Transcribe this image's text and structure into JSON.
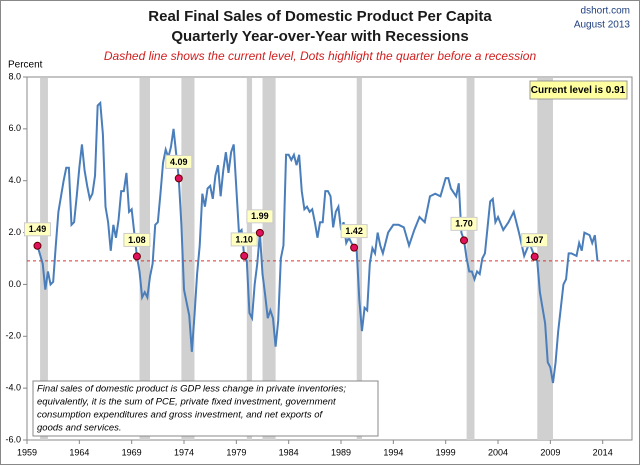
{
  "chart_data": {
    "type": "line",
    "title": "Real Final Sales of Domestic Product Per Capita",
    "title2": "Quarterly Year-over-Year with Recessions",
    "subtitle": "Dashed line shows the current level, Dots highlight the quarter before a recession",
    "source": "dshort.com",
    "date": "August 2013",
    "y_label": "Percent",
    "note": [
      "Final sales of domestic product is GDP less change in private inventories;",
      "equivalently, it is the sum of PCE, private fixed investment, government",
      "consumption expenditures and gross investment, and net exports of",
      "goods and services."
    ],
    "xlim": [
      1959,
      2016.8
    ],
    "xticks": [
      1959,
      1964,
      1969,
      1974,
      1979,
      1984,
      1989,
      1994,
      1999,
      2004,
      2009,
      2014
    ],
    "ylim": [
      -6,
      8
    ],
    "yticks": [
      {
        "value": -6,
        "label": "-6.0"
      },
      {
        "value": -4,
        "label": "-4.0"
      },
      {
        "value": -2,
        "label": "-2.0"
      },
      {
        "value": 0,
        "label": "0.0"
      },
      {
        "value": 2,
        "label": "2.0"
      },
      {
        "value": 4,
        "label": "4.0"
      },
      {
        "value": 6,
        "label": "6.0"
      },
      {
        "value": 8,
        "label": "8.0"
      }
    ],
    "color": "#4a7ebb",
    "recession_color": "#d0d0d0",
    "recessions": [
      [
        1960.25,
        1961.0
      ],
      [
        1969.75,
        1970.75
      ],
      [
        1973.75,
        1975.0
      ],
      [
        1980.0,
        1980.5
      ],
      [
        1981.5,
        1982.75
      ],
      [
        1990.5,
        1991.0
      ],
      [
        2001.0,
        2001.75
      ],
      [
        2007.75,
        2009.25
      ]
    ],
    "x": [
      1960.0,
      1960.5,
      1960.75,
      1961.0,
      1961.25,
      1961.5,
      1961.75,
      1962.0,
      1962.5,
      1962.75,
      1963.0,
      1963.25,
      1963.5,
      1963.75,
      1964.0,
      1964.25,
      1964.5,
      1964.75,
      1965.0,
      1965.25,
      1965.5,
      1965.75,
      1966.0,
      1966.25,
      1966.5,
      1966.75,
      1967.0,
      1967.25,
      1967.5,
      1967.75,
      1968.0,
      1968.25,
      1968.5,
      1968.75,
      1969.0,
      1969.5,
      1969.75,
      1970.0,
      1970.25,
      1970.5,
      1970.75,
      1971.0,
      1971.25,
      1971.5,
      1971.75,
      1972.0,
      1972.25,
      1972.5,
      1972.75,
      1973.0,
      1973.5,
      1973.75,
      1974.0,
      1974.25,
      1974.5,
      1974.75,
      1975.0,
      1975.25,
      1975.5,
      1975.75,
      1976.0,
      1976.25,
      1976.5,
      1976.75,
      1977.0,
      1977.25,
      1977.5,
      1977.75,
      1978.0,
      1978.25,
      1978.5,
      1978.75,
      1979.0,
      1979.25,
      1979.5,
      1979.75,
      1980.0,
      1980.25,
      1980.5,
      1980.75,
      1981.0,
      1981.25,
      1981.5,
      1981.75,
      1982.0,
      1982.25,
      1982.5,
      1982.75,
      1983.0,
      1983.25,
      1983.5,
      1983.75,
      1984.0,
      1984.25,
      1984.5,
      1984.75,
      1985.0,
      1985.25,
      1985.5,
      1985.75,
      1986.0,
      1986.25,
      1986.5,
      1986.75,
      1987.0,
      1987.25,
      1987.5,
      1987.75,
      1988.0,
      1988.25,
      1988.5,
      1988.75,
      1989.0,
      1989.25,
      1989.5,
      1989.75,
      1990.0,
      1990.25,
      1990.5,
      1990.75,
      1991.0,
      1991.25,
      1991.5,
      1991.75,
      1992.0,
      1992.25,
      1992.5,
      1992.75,
      1993.0,
      1993.5,
      1994.0,
      1994.5,
      1995.0,
      1995.5,
      1996.0,
      1996.5,
      1997.0,
      1997.5,
      1998.0,
      1998.5,
      1999.0,
      1999.25,
      1999.5,
      2000.0,
      2000.25,
      2000.5,
      2000.75,
      2001.0,
      2001.25,
      2001.5,
      2001.75,
      2002.0,
      2002.25,
      2002.5,
      2002.75,
      2003.0,
      2003.25,
      2003.5,
      2003.75,
      2004.0,
      2004.5,
      2005.0,
      2005.5,
      2006.0,
      2006.5,
      2007.0,
      2007.5,
      2007.75,
      2008.0,
      2008.5,
      2008.75,
      2009.0,
      2009.25,
      2009.5,
      2009.75,
      2010.0,
      2010.25,
      2010.5,
      2010.75,
      2011.0,
      2011.5,
      2011.75,
      2012.0,
      2012.25,
      2012.75,
      2013.0,
      2013.25,
      2013.5
    ],
    "values": [
      1.49,
      0.8,
      -0.2,
      0.5,
      0.0,
      0.1,
      1.5,
      2.8,
      4.0,
      4.5,
      4.5,
      2.3,
      2.4,
      3.4,
      4.5,
      5.4,
      4.4,
      3.8,
      3.3,
      3.5,
      4.2,
      6.9,
      7.0,
      5.8,
      3.0,
      2.4,
      1.3,
      2.3,
      1.8,
      2.5,
      3.6,
      3.6,
      4.3,
      2.8,
      2.9,
      1.08,
      0.5,
      -0.5,
      -0.3,
      -0.5,
      0.3,
      0.8,
      2.3,
      2.4,
      3.5,
      4.7,
      5.2,
      4.9,
      5.3,
      6.0,
      4.09,
      2.3,
      -0.2,
      -0.7,
      -1.2,
      -2.6,
      -1.2,
      0.4,
      1.5,
      3.5,
      3.0,
      3.7,
      3.8,
      3.3,
      4.2,
      4.6,
      3.4,
      4.4,
      5.1,
      4.3,
      5.1,
      5.4,
      3.7,
      2.0,
      2.1,
      1.1,
      0.9,
      -1.1,
      -1.3,
      0.0,
      0.8,
      1.99,
      0.4,
      -0.4,
      -1.3,
      -1.0,
      -1.3,
      -2.4,
      -1.4,
      1.0,
      1.5,
      5.0,
      5.0,
      4.8,
      5.0,
      4.6,
      5.0,
      3.6,
      2.9,
      3.0,
      2.8,
      2.9,
      2.4,
      1.8,
      2.4,
      2.4,
      3.6,
      3.6,
      3.4,
      2.2,
      2.8,
      3.0,
      2.1,
      2.4,
      1.6,
      1.8,
      1.6,
      1.42,
      1.3,
      -0.6,
      -1.8,
      -0.9,
      -1.0,
      0.8,
      1.4,
      1.2,
      2.0,
      1.5,
      1.2,
      2.0,
      2.3,
      2.3,
      2.2,
      1.5,
      2.1,
      2.6,
      2.4,
      3.4,
      3.5,
      3.4,
      4.1,
      4.1,
      3.7,
      3.4,
      3.9,
      2.0,
      1.7,
      1.0,
      0.5,
      0.5,
      0.2,
      0.5,
      0.4,
      1.0,
      1.2,
      2.2,
      3.2,
      3.3,
      2.4,
      2.6,
      2.1,
      2.4,
      2.8,
      2.0,
      1.1,
      1.6,
      1.07,
      0.9,
      -0.3,
      -1.5,
      -3.0,
      -3.2,
      -3.8,
      -3.0,
      -1.8,
      -0.9,
      0.0,
      0.2,
      1.2,
      1.2,
      1.1,
      1.6,
      1.3,
      2.0,
      1.9,
      1.6,
      1.9,
      0.91
    ],
    "highlights": {
      "x": [
        1960.0,
        1969.5,
        1973.5,
        1979.75,
        1981.25,
        1990.25,
        2000.75,
        2007.5
      ],
      "values": [
        1.49,
        1.08,
        4.09,
        1.1,
        1.99,
        1.42,
        1.7,
        1.07
      ],
      "value_labels": [
        "1.49",
        "1.08",
        "4.09",
        "1.10",
        "1.99",
        "1.42",
        "1.70",
        "1.07"
      ],
      "color": "#e0115f"
    },
    "current_level": {
      "value": 0.91,
      "label": "Current level is 0.91",
      "color": "#e03030"
    }
  }
}
